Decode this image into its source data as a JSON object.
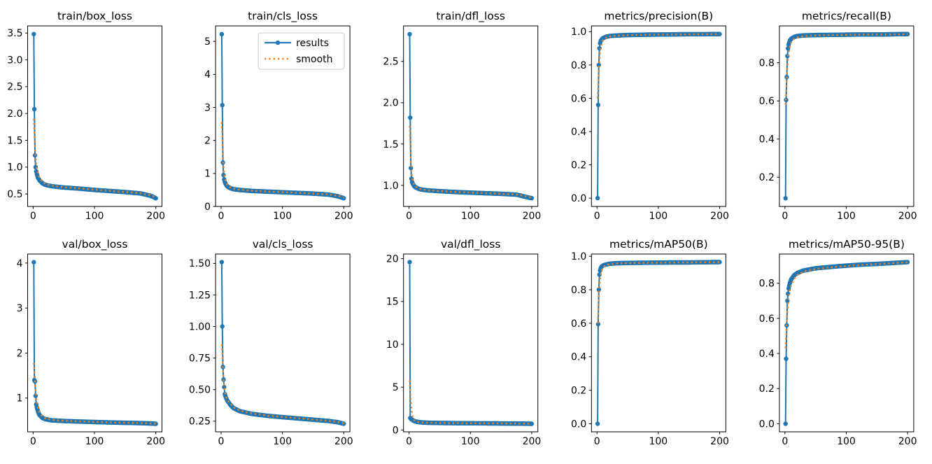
{
  "figure": {
    "background": "#ffffff",
    "description": "Training results grid: 2 rows x 5 columns of line charts"
  },
  "colors": {
    "results": "#1f77b4",
    "smooth": "#ff7f0e",
    "spine": "#000000",
    "legend_border": "#cccccc",
    "legend_bg": "#ffffff"
  },
  "legend": {
    "entries": [
      "results",
      "smooth"
    ],
    "host_plot": "train/cls_loss",
    "position": "upper right"
  },
  "chart_data": [
    {
      "type": "line",
      "title": "train/box_loss",
      "xlabel": "",
      "ylabel": "",
      "grid": false,
      "xlim": [
        -9,
        210
      ],
      "ylim": [
        0.267,
        3.633
      ],
      "xticks": {
        "values": [
          0,
          100,
          200
        ],
        "labels": [
          "0",
          "100",
          "200"
        ]
      },
      "yticks": {
        "values": [
          0.5,
          1.0,
          1.5,
          2.0,
          2.5,
          3.0,
          3.5
        ],
        "labels": [
          "0.5",
          "1.0",
          "1.5",
          "2.0",
          "2.5",
          "3.0",
          "3.5"
        ]
      },
      "x": [
        1,
        2,
        3,
        4,
        5,
        6,
        8,
        10,
        15,
        20,
        30,
        50,
        75,
        100,
        125,
        150,
        175,
        190,
        195,
        200
      ],
      "series": [
        {
          "name": "results",
          "y": [
            3.48,
            2.08,
            1.22,
            1.0,
            0.92,
            0.87,
            0.8,
            0.76,
            0.7,
            0.67,
            0.645,
            0.62,
            0.6,
            0.575,
            0.555,
            0.535,
            0.51,
            0.47,
            0.45,
            0.42
          ]
        },
        {
          "name": "smooth",
          "y": [
            1.9,
            1.67,
            1.4,
            1.2,
            1.06,
            0.97,
            0.87,
            0.81,
            0.73,
            0.69,
            0.655,
            0.625,
            0.605,
            0.58,
            0.558,
            0.537,
            0.513,
            0.478,
            0.46,
            0.44
          ]
        }
      ],
      "legend_visible": false
    },
    {
      "type": "line",
      "title": "train/cls_loss",
      "xlabel": "",
      "ylabel": "",
      "grid": false,
      "xlim": [
        -9,
        210
      ],
      "ylim": [
        0.0,
        5.47
      ],
      "xticks": {
        "values": [
          0,
          100,
          200
        ],
        "labels": [
          "0",
          "100",
          "200"
        ]
      },
      "yticks": {
        "values": [
          0,
          1,
          2,
          3,
          4,
          5
        ],
        "labels": [
          "0",
          "1",
          "2",
          "3",
          "4",
          "5"
        ]
      },
      "x": [
        1,
        2,
        3,
        4,
        5,
        6,
        8,
        10,
        15,
        20,
        30,
        50,
        75,
        100,
        125,
        150,
        175,
        190,
        195,
        200
      ],
      "series": [
        {
          "name": "results",
          "y": [
            5.22,
            3.07,
            1.33,
            0.95,
            0.82,
            0.74,
            0.66,
            0.61,
            0.555,
            0.525,
            0.5,
            0.47,
            0.45,
            0.43,
            0.41,
            0.39,
            0.36,
            0.31,
            0.28,
            0.25
          ]
        },
        {
          "name": "smooth",
          "y": [
            2.55,
            2.15,
            1.6,
            1.22,
            1.0,
            0.88,
            0.74,
            0.66,
            0.58,
            0.54,
            0.51,
            0.475,
            0.455,
            0.435,
            0.413,
            0.392,
            0.365,
            0.325,
            0.3,
            0.27
          ]
        }
      ],
      "legend_visible": true
    },
    {
      "type": "line",
      "title": "train/dfl_loss",
      "xlabel": "",
      "ylabel": "",
      "grid": false,
      "xlim": [
        -9,
        210
      ],
      "ylim": [
        0.745,
        2.93
      ],
      "xticks": {
        "values": [
          0,
          100,
          200
        ],
        "labels": [
          "0",
          "100",
          "200"
        ]
      },
      "yticks": {
        "values": [
          1.0,
          1.5,
          2.0,
          2.5
        ],
        "labels": [
          "1.0",
          "1.5",
          "2.0",
          "2.5"
        ]
      },
      "x": [
        1,
        2,
        3,
        4,
        5,
        6,
        8,
        10,
        15,
        20,
        30,
        50,
        75,
        100,
        125,
        150,
        175,
        190,
        195,
        200
      ],
      "series": [
        {
          "name": "results",
          "y": [
            2.83,
            1.82,
            1.21,
            1.08,
            1.04,
            1.02,
            0.995,
            0.98,
            0.96,
            0.95,
            0.94,
            0.93,
            0.92,
            0.912,
            0.905,
            0.898,
            0.888,
            0.862,
            0.852,
            0.845
          ]
        },
        {
          "name": "smooth",
          "y": [
            1.72,
            1.54,
            1.3,
            1.16,
            1.09,
            1.05,
            1.01,
            0.99,
            0.965,
            0.952,
            0.941,
            0.931,
            0.921,
            0.913,
            0.906,
            0.899,
            0.89,
            0.868,
            0.858,
            0.85
          ]
        }
      ],
      "legend_visible": false
    },
    {
      "type": "line",
      "title": "metrics/precision(B)",
      "xlabel": "",
      "ylabel": "",
      "grid": false,
      "xlim": [
        -9,
        210
      ],
      "ylim": [
        -0.05,
        1.035
      ],
      "xticks": {
        "values": [
          0,
          100,
          200
        ],
        "labels": [
          "0",
          "100",
          "200"
        ]
      },
      "yticks": {
        "values": [
          0.0,
          0.2,
          0.4,
          0.6,
          0.8,
          1.0
        ],
        "labels": [
          "0.0",
          "0.2",
          "0.4",
          "0.6",
          "0.8",
          "1.0"
        ]
      },
      "x": [
        1,
        2,
        3,
        4,
        5,
        6,
        8,
        10,
        15,
        20,
        30,
        50,
        75,
        100,
        125,
        150,
        175,
        190,
        195,
        200
      ],
      "series": [
        {
          "name": "results",
          "y": [
            0.0,
            0.56,
            0.8,
            0.9,
            0.93,
            0.945,
            0.955,
            0.962,
            0.97,
            0.974,
            0.977,
            0.98,
            0.982,
            0.983,
            0.984,
            0.985,
            0.985,
            0.986,
            0.986,
            0.986
          ]
        },
        {
          "name": "smooth",
          "y": [
            0.6,
            0.67,
            0.75,
            0.82,
            0.87,
            0.9,
            0.935,
            0.951,
            0.965,
            0.971,
            0.976,
            0.979,
            0.981,
            0.982,
            0.983,
            0.984,
            0.985,
            0.985,
            0.986,
            0.986
          ]
        }
      ],
      "legend_visible": false
    },
    {
      "type": "line",
      "title": "metrics/recall(B)",
      "xlabel": "",
      "ylabel": "",
      "grid": false,
      "xlim": [
        -9,
        210
      ],
      "ylim": [
        0.047,
        0.993
      ],
      "xticks": {
        "values": [
          0,
          100,
          200
        ],
        "labels": [
          "0",
          "100",
          "200"
        ]
      },
      "yticks": {
        "values": [
          0.2,
          0.4,
          0.6,
          0.8
        ],
        "labels": [
          "0.2",
          "0.4",
          "0.6",
          "0.8"
        ]
      },
      "x": [
        1,
        2,
        3,
        4,
        5,
        6,
        8,
        10,
        15,
        20,
        30,
        50,
        75,
        100,
        125,
        150,
        175,
        190,
        195,
        200
      ],
      "series": [
        {
          "name": "results",
          "y": [
            0.09,
            0.605,
            0.725,
            0.835,
            0.875,
            0.895,
            0.915,
            0.925,
            0.935,
            0.94,
            0.943,
            0.945,
            0.946,
            0.947,
            0.948,
            0.948,
            0.949,
            0.95,
            0.95,
            0.95
          ]
        },
        {
          "name": "smooth",
          "y": [
            0.58,
            0.645,
            0.715,
            0.775,
            0.82,
            0.85,
            0.885,
            0.905,
            0.925,
            0.933,
            0.939,
            0.943,
            0.945,
            0.946,
            0.947,
            0.948,
            0.948,
            0.949,
            0.95,
            0.95
          ]
        }
      ],
      "legend_visible": false
    },
    {
      "type": "line",
      "title": "val/box_loss",
      "xlabel": "",
      "ylabel": "",
      "grid": false,
      "xlim": [
        -9,
        210
      ],
      "ylim": [
        0.25,
        4.2
      ],
      "xticks": {
        "values": [
          0,
          100,
          200
        ],
        "labels": [
          "0",
          "100",
          "200"
        ]
      },
      "yticks": {
        "values": [
          1,
          2,
          3,
          4
        ],
        "labels": [
          "1",
          "2",
          "3",
          "4"
        ]
      },
      "x": [
        1,
        2,
        3,
        4,
        5,
        6,
        8,
        10,
        15,
        20,
        30,
        50,
        75,
        100,
        125,
        150,
        175,
        190,
        195,
        200
      ],
      "series": [
        {
          "name": "results",
          "y": [
            4.02,
            1.4,
            1.37,
            1.05,
            0.86,
            0.79,
            0.7,
            0.63,
            0.56,
            0.53,
            0.505,
            0.49,
            0.478,
            0.468,
            0.458,
            0.45,
            0.443,
            0.436,
            0.432,
            0.428
          ]
        },
        {
          "name": "smooth",
          "y": [
            1.78,
            1.62,
            1.4,
            1.17,
            1.01,
            0.91,
            0.77,
            0.69,
            0.59,
            0.55,
            0.515,
            0.495,
            0.481,
            0.47,
            0.46,
            0.452,
            0.444,
            0.437,
            0.433,
            0.43
          ]
        }
      ],
      "legend_visible": false
    },
    {
      "type": "line",
      "title": "val/cls_loss",
      "xlabel": "",
      "ylabel": "",
      "grid": false,
      "xlim": [
        -9,
        210
      ],
      "ylim": [
        0.166,
        1.574
      ],
      "xticks": {
        "values": [
          0,
          100,
          200
        ],
        "labels": [
          "0",
          "100",
          "200"
        ]
      },
      "yticks": {
        "values": [
          0.25,
          0.5,
          0.75,
          1.0,
          1.25,
          1.5
        ],
        "labels": [
          "0.25",
          "0.50",
          "0.75",
          "1.00",
          "1.25",
          "1.50"
        ]
      },
      "x": [
        1,
        2,
        3,
        4,
        5,
        6,
        8,
        10,
        15,
        20,
        30,
        50,
        75,
        100,
        125,
        150,
        175,
        190,
        195,
        200
      ],
      "series": [
        {
          "name": "results",
          "y": [
            1.51,
            1.0,
            0.68,
            0.58,
            0.52,
            0.465,
            0.435,
            0.415,
            0.38,
            0.355,
            0.33,
            0.308,
            0.293,
            0.282,
            0.272,
            0.262,
            0.252,
            0.242,
            0.236,
            0.23
          ]
        },
        {
          "name": "smooth",
          "y": [
            0.86,
            0.79,
            0.67,
            0.58,
            0.525,
            0.485,
            0.443,
            0.42,
            0.387,
            0.36,
            0.335,
            0.311,
            0.295,
            0.284,
            0.273,
            0.263,
            0.253,
            0.244,
            0.239,
            0.235
          ]
        }
      ],
      "legend_visible": false
    },
    {
      "type": "line",
      "title": "val/dfl_loss",
      "xlabel": "",
      "ylabel": "",
      "grid": false,
      "xlim": [
        -9,
        210
      ],
      "ylim": [
        -0.21,
        20.54
      ],
      "xticks": {
        "values": [
          0,
          100,
          200
        ],
        "labels": [
          "0",
          "100",
          "200"
        ]
      },
      "yticks": {
        "values": [
          0,
          5,
          10,
          15,
          20
        ],
        "labels": [
          "0",
          "5",
          "10",
          "15",
          "20"
        ]
      },
      "x": [
        1,
        2,
        3,
        4,
        5,
        6,
        8,
        10,
        15,
        20,
        30,
        50,
        75,
        100,
        125,
        150,
        175,
        190,
        195,
        200
      ],
      "series": [
        {
          "name": "results",
          "y": [
            19.6,
            1.4,
            1.32,
            1.26,
            1.2,
            1.15,
            1.07,
            1.01,
            0.93,
            0.89,
            0.85,
            0.82,
            0.8,
            0.785,
            0.775,
            0.765,
            0.75,
            0.74,
            0.735,
            0.73
          ]
        },
        {
          "name": "smooth",
          "y": [
            5.8,
            4.6,
            3.4,
            2.5,
            1.9,
            1.55,
            1.18,
            1.03,
            0.94,
            0.9,
            0.855,
            0.823,
            0.802,
            0.787,
            0.776,
            0.766,
            0.752,
            0.742,
            0.737,
            0.733
          ]
        }
      ],
      "legend_visible": false
    },
    {
      "type": "line",
      "title": "metrics/mAP50(B)",
      "xlabel": "",
      "ylabel": "",
      "grid": false,
      "xlim": [
        -9,
        210
      ],
      "ylim": [
        -0.048,
        1.013
      ],
      "xticks": {
        "values": [
          0,
          100,
          200
        ],
        "labels": [
          "0",
          "100",
          "200"
        ]
      },
      "yticks": {
        "values": [
          0.0,
          0.2,
          0.4,
          0.6,
          0.8,
          1.0
        ],
        "labels": [
          "0.0",
          "0.2",
          "0.4",
          "0.6",
          "0.8",
          "1.0"
        ]
      },
      "x": [
        1,
        2,
        3,
        4,
        5,
        6,
        8,
        10,
        15,
        20,
        30,
        50,
        75,
        100,
        125,
        150,
        175,
        190,
        195,
        200
      ],
      "series": [
        {
          "name": "results",
          "y": [
            0.0,
            0.595,
            0.8,
            0.89,
            0.915,
            0.928,
            0.94,
            0.945,
            0.951,
            0.955,
            0.958,
            0.96,
            0.961,
            0.962,
            0.963,
            0.963,
            0.964,
            0.965,
            0.965,
            0.965
          ]
        },
        {
          "name": "smooth",
          "y": [
            0.6,
            0.665,
            0.745,
            0.815,
            0.86,
            0.89,
            0.92,
            0.935,
            0.947,
            0.952,
            0.956,
            0.959,
            0.96,
            0.961,
            0.962,
            0.963,
            0.964,
            0.964,
            0.965,
            0.965
          ]
        }
      ],
      "legend_visible": false
    },
    {
      "type": "line",
      "title": "metrics/mAP50-95(B)",
      "xlabel": "",
      "ylabel": "",
      "grid": false,
      "xlim": [
        -9,
        210
      ],
      "ylim": [
        -0.046,
        0.966
      ],
      "xticks": {
        "values": [
          0,
          100,
          200
        ],
        "labels": [
          "0",
          "100",
          "200"
        ]
      },
      "yticks": {
        "values": [
          0.0,
          0.2,
          0.4,
          0.6,
          0.8
        ],
        "labels": [
          "0.0",
          "0.2",
          "0.4",
          "0.6",
          "0.8"
        ]
      },
      "x": [
        1,
        2,
        3,
        4,
        5,
        6,
        8,
        10,
        15,
        20,
        30,
        50,
        75,
        100,
        125,
        150,
        175,
        190,
        195,
        200
      ],
      "series": [
        {
          "name": "results",
          "y": [
            0.0,
            0.37,
            0.56,
            0.7,
            0.74,
            0.77,
            0.8,
            0.82,
            0.845,
            0.858,
            0.872,
            0.885,
            0.893,
            0.9,
            0.906,
            0.91,
            0.915,
            0.918,
            0.919,
            0.92
          ]
        },
        {
          "name": "smooth",
          "y": [
            0.43,
            0.5,
            0.575,
            0.635,
            0.685,
            0.715,
            0.757,
            0.787,
            0.825,
            0.845,
            0.866,
            0.881,
            0.891,
            0.898,
            0.904,
            0.909,
            0.914,
            0.917,
            0.918,
            0.919
          ]
        }
      ],
      "legend_visible": false
    }
  ]
}
